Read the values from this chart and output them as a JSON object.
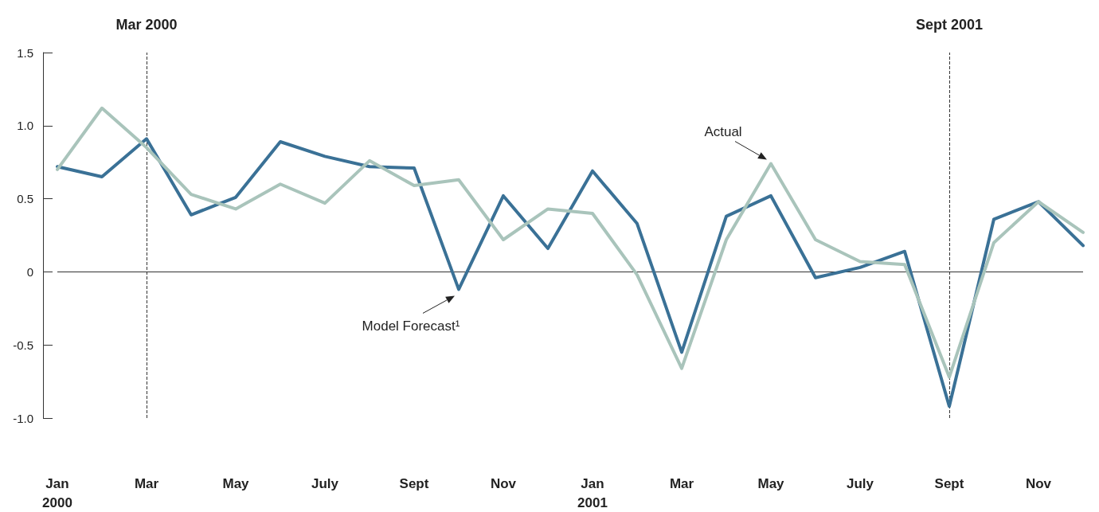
{
  "chart_data": {
    "type": "line",
    "x": [
      "2000-01",
      "2000-02",
      "2000-03",
      "2000-04",
      "2000-05",
      "2000-06",
      "2000-07",
      "2000-08",
      "2000-09",
      "2000-10",
      "2000-11",
      "2000-12",
      "2001-01",
      "2001-02",
      "2001-03",
      "2001-04",
      "2001-05",
      "2001-06",
      "2001-07",
      "2001-08",
      "2001-09",
      "2001-10",
      "2001-11",
      "2001-12"
    ],
    "series": [
      {
        "color": "#3a7196",
        "values": [
          0.72,
          0.65,
          0.91,
          0.39,
          0.51,
          0.89,
          0.79,
          0.72,
          0.71,
          -0.12,
          0.52,
          0.16,
          0.69,
          0.33,
          -0.55,
          0.38,
          0.52,
          -0.04,
          0.03,
          0.14,
          -0.92,
          0.36,
          0.48,
          0.18
        ]
      },
      {
        "color": "#a9c4bb",
        "values": [
          0.7,
          1.12,
          0.85,
          0.53,
          0.43,
          0.6,
          0.47,
          0.76,
          0.59,
          0.63,
          0.22,
          0.43,
          0.4,
          -0.02,
          -0.66,
          0.22,
          0.74,
          0.22,
          0.07,
          0.05,
          -0.72,
          0.2,
          0.48,
          0.27
        ]
      }
    ],
    "xlim": [
      "2000-01",
      "2001-12"
    ],
    "xticks": [
      {
        "value": "2000-01",
        "label": "Jan\n2000"
      },
      {
        "value": "2000-03",
        "label": "Mar"
      },
      {
        "value": "2000-05",
        "label": "May"
      },
      {
        "value": "2000-07",
        "label": "July"
      },
      {
        "value": "2000-09",
        "label": "Sept"
      },
      {
        "value": "2000-11",
        "label": "Nov"
      },
      {
        "value": "2001-01",
        "label": "Jan\n2001"
      },
      {
        "value": "2001-03",
        "label": "Mar"
      },
      {
        "value": "2001-05",
        "label": "May"
      },
      {
        "value": "2001-07",
        "label": "July"
      },
      {
        "value": "2001-09",
        "label": "Sept"
      },
      {
        "value": "2001-11",
        "label": "Nov"
      }
    ],
    "ylim": [
      -1.0,
      1.5
    ],
    "yticks": [
      {
        "value": -1,
        "label": "-1.0"
      },
      -0.5,
      0,
      0.5,
      {
        "value": 1,
        "label": "1.0"
      },
      1.5
    ],
    "ref_lines": [
      {
        "axis": "y",
        "value": 0,
        "color": "#333333",
        "line_style": "solid"
      },
      {
        "axis": "x",
        "value": "2000-03",
        "label": "Mar 2000",
        "color": "#333333",
        "line_style": "dashed"
      },
      {
        "axis": "x",
        "value": "2001-09",
        "label": "Sept 2001",
        "color": "#333333",
        "line_style": "dashed"
      }
    ],
    "annotations": [
      {
        "text": "Actual",
        "x": "2001-05",
        "y": 0.74
      },
      {
        "text": "Model Forecast¹",
        "x": "2000-10",
        "y": -0.12
      }
    ],
    "line_style": "solid",
    "marker": "none"
  }
}
